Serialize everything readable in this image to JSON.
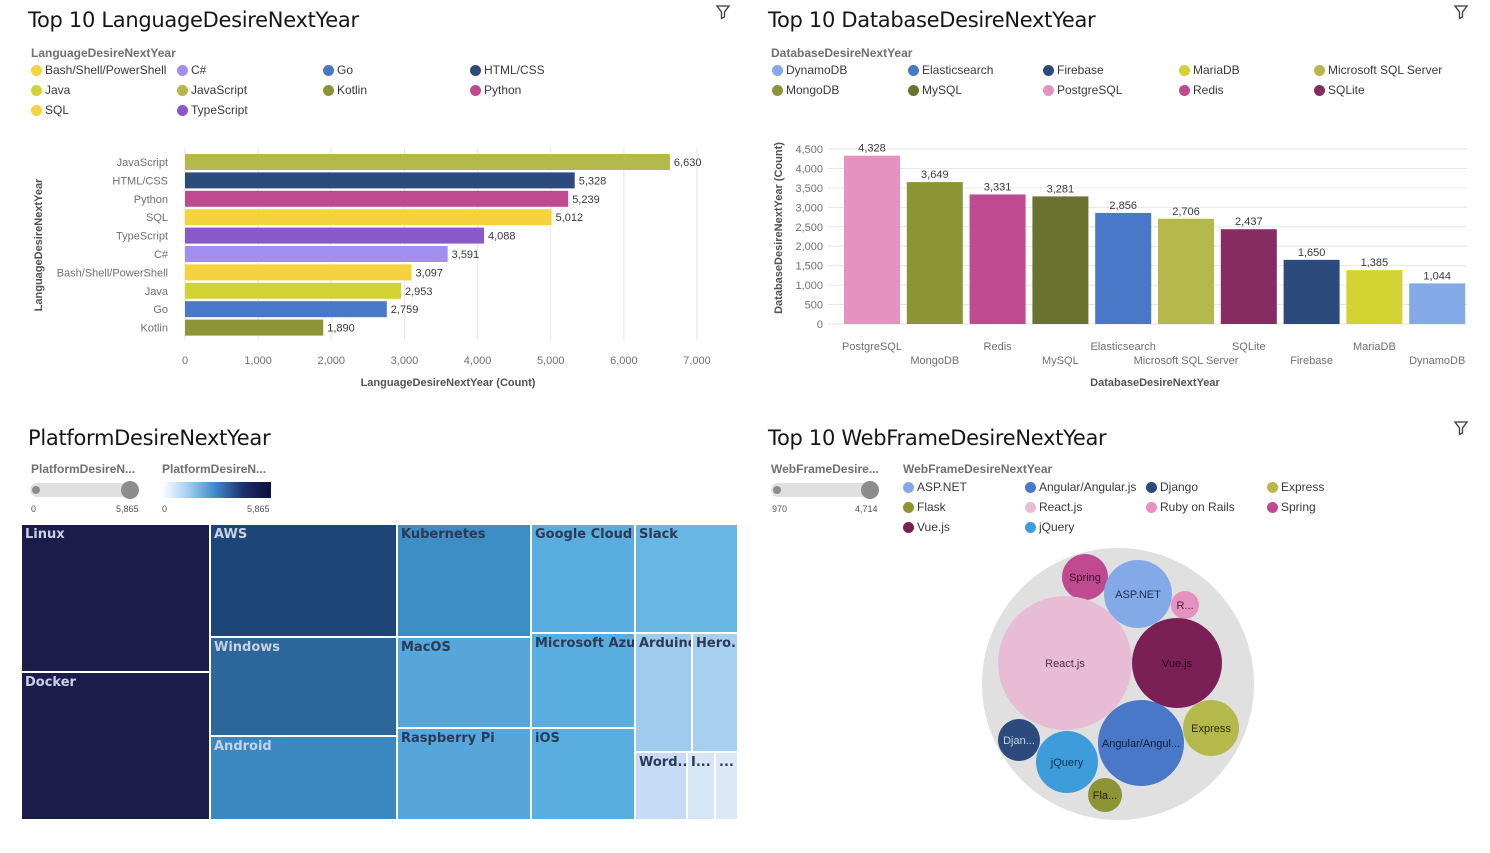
{
  "colors": {
    "Bash/Shell/PowerShell": "#f5d33f",
    "C#": "#a28ef0",
    "Go": "#4878c7",
    "HTML/CSS": "#2d4a7c",
    "Java": "#d2d232",
    "JavaScript": "#b5b84a",
    "Kotlin": "#8c9435",
    "Python": "#c04a90",
    "SQL": "#f5d33f",
    "TypeScript": "#8a58c8",
    "DynamoDB": "#83aae6",
    "Elasticsearch": "#4878c7",
    "Firebase": "#2d4a7c",
    "MariaDB": "#d2d232",
    "Microsoft SQL Server": "#b5b84a",
    "MongoDB": "#8c9435",
    "MySQL": "#6b7230",
    "PostgreSQL": "#e592c1",
    "Redis": "#c04a90",
    "SQLite": "#862c63",
    "ASP.NET": "#83aae6",
    "Angular/Angular.js": "#4878c7",
    "Django": "#2d4a7c",
    "Express": "#b5b84a",
    "Flask": "#8c9435",
    "React.js": "#e8bcd5",
    "Ruby on Rails": "#e592c1",
    "Spring": "#c04a90",
    "Vue.js": "#7a2057",
    "jQuery": "#3d9ddb"
  },
  "panel1": {
    "title": "Top 10 LanguageDesireNextYear",
    "legend_title": "LanguageDesireNextYear",
    "legend": [
      "Bash/Shell/PowerShell",
      "C#",
      "Go",
      "HTML/CSS",
      "Java",
      "JavaScript",
      "Kotlin",
      "Python",
      "SQL",
      "TypeScript"
    ]
  },
  "panel2": {
    "title": "Top 10 DatabaseDesireNextYear",
    "legend_title": "DatabaseDesireNextYear",
    "legend": [
      "DynamoDB",
      "Elasticsearch",
      "Firebase",
      "MariaDB",
      "Microsoft SQL Server",
      "MongoDB",
      "MySQL",
      "PostgreSQL",
      "Redis",
      "SQLite"
    ]
  },
  "panel3": {
    "title": "PlatformDesireNextYear",
    "size_legend_title": "PlatformDesireN...",
    "color_legend_title": "PlatformDesireN...",
    "size_min": "0",
    "size_max": "5,865",
    "color_min": "0",
    "color_max": "5,865"
  },
  "panel4": {
    "title": "Top 10 WebFrameDesireNextYear",
    "size_legend_title": "WebFrameDesire...",
    "legend_title": "WebFrameDesireNextYear",
    "size_min": "970",
    "size_max": "4,714",
    "legend": [
      "ASP.NET",
      "Angular/Angular.js",
      "Django",
      "Express",
      "Flask",
      "React.js",
      "Ruby on Rails",
      "Spring",
      "Vue.js",
      "jQuery"
    ]
  },
  "chart_data": [
    {
      "type": "bar",
      "orientation": "horizontal",
      "title": "Top 10 LanguageDesireNextYear",
      "xlabel": "LanguageDesireNextYear (Count)",
      "ylabel": "LanguageDesireNextYear",
      "xlim": [
        0,
        7000
      ],
      "xticks": [
        "0",
        "1,000",
        "2,000",
        "3,000",
        "4,000",
        "5,000",
        "6,000",
        "7,000"
      ],
      "categories": [
        "JavaScript",
        "HTML/CSS",
        "Python",
        "SQL",
        "TypeScript",
        "C#",
        "Bash/Shell/PowerShell",
        "Java",
        "Go",
        "Kotlin"
      ],
      "values": [
        6630,
        5328,
        5239,
        5012,
        4088,
        3591,
        3097,
        2953,
        2759,
        1890
      ],
      "value_labels": [
        "6,630",
        "5,328",
        "5,239",
        "5,012",
        "4,088",
        "3,591",
        "3,097",
        "2,953",
        "2,759",
        "1,890"
      ],
      "legend_placement": "top"
    },
    {
      "type": "bar",
      "orientation": "vertical",
      "title": "Top 10 DatabaseDesireNextYear",
      "xlabel": "DatabaseDesireNextYear",
      "ylabel": "DatabaseDesireNextYear (Count)",
      "ylim": [
        0,
        4500
      ],
      "yticks": [
        "0",
        "500",
        "1,000",
        "1,500",
        "2,000",
        "2,500",
        "3,000",
        "3,500",
        "4,000",
        "4,500"
      ],
      "categories": [
        "PostgreSQL",
        "MongoDB",
        "Redis",
        "MySQL",
        "Elasticsearch",
        "Microsoft SQL Server",
        "SQLite",
        "Firebase",
        "MariaDB",
        "DynamoDB"
      ],
      "values": [
        4328,
        3649,
        3331,
        3281,
        2856,
        2706,
        2437,
        1650,
        1385,
        1044
      ],
      "value_labels": [
        "4,328",
        "3,649",
        "3,331",
        "3,281",
        "2,856",
        "2,706",
        "2,437",
        "1,650",
        "1,385",
        "1,044"
      ],
      "grid": true,
      "legend_placement": "top"
    },
    {
      "type": "treemap",
      "title": "PlatformDesireNextYear",
      "labels": [
        "Linux",
        "Docker",
        "AWS",
        "Windows",
        "Android",
        "Kubernetes",
        "MacOS",
        "Raspberry Pi",
        "Google Cloud ...",
        "Microsoft Azure",
        "iOS",
        "Slack",
        "Arduino",
        "Hero...",
        "Word...",
        "I...",
        "..."
      ]
    },
    {
      "type": "bubble",
      "title": "Top 10 WebFrameDesireNextYear",
      "labels": [
        "Spring",
        "ASP.NET",
        "R...",
        "React.js",
        "Vue.js",
        "Express",
        "Angular/Angul...",
        "Djan...",
        "jQuery",
        "Fla..."
      ]
    }
  ]
}
